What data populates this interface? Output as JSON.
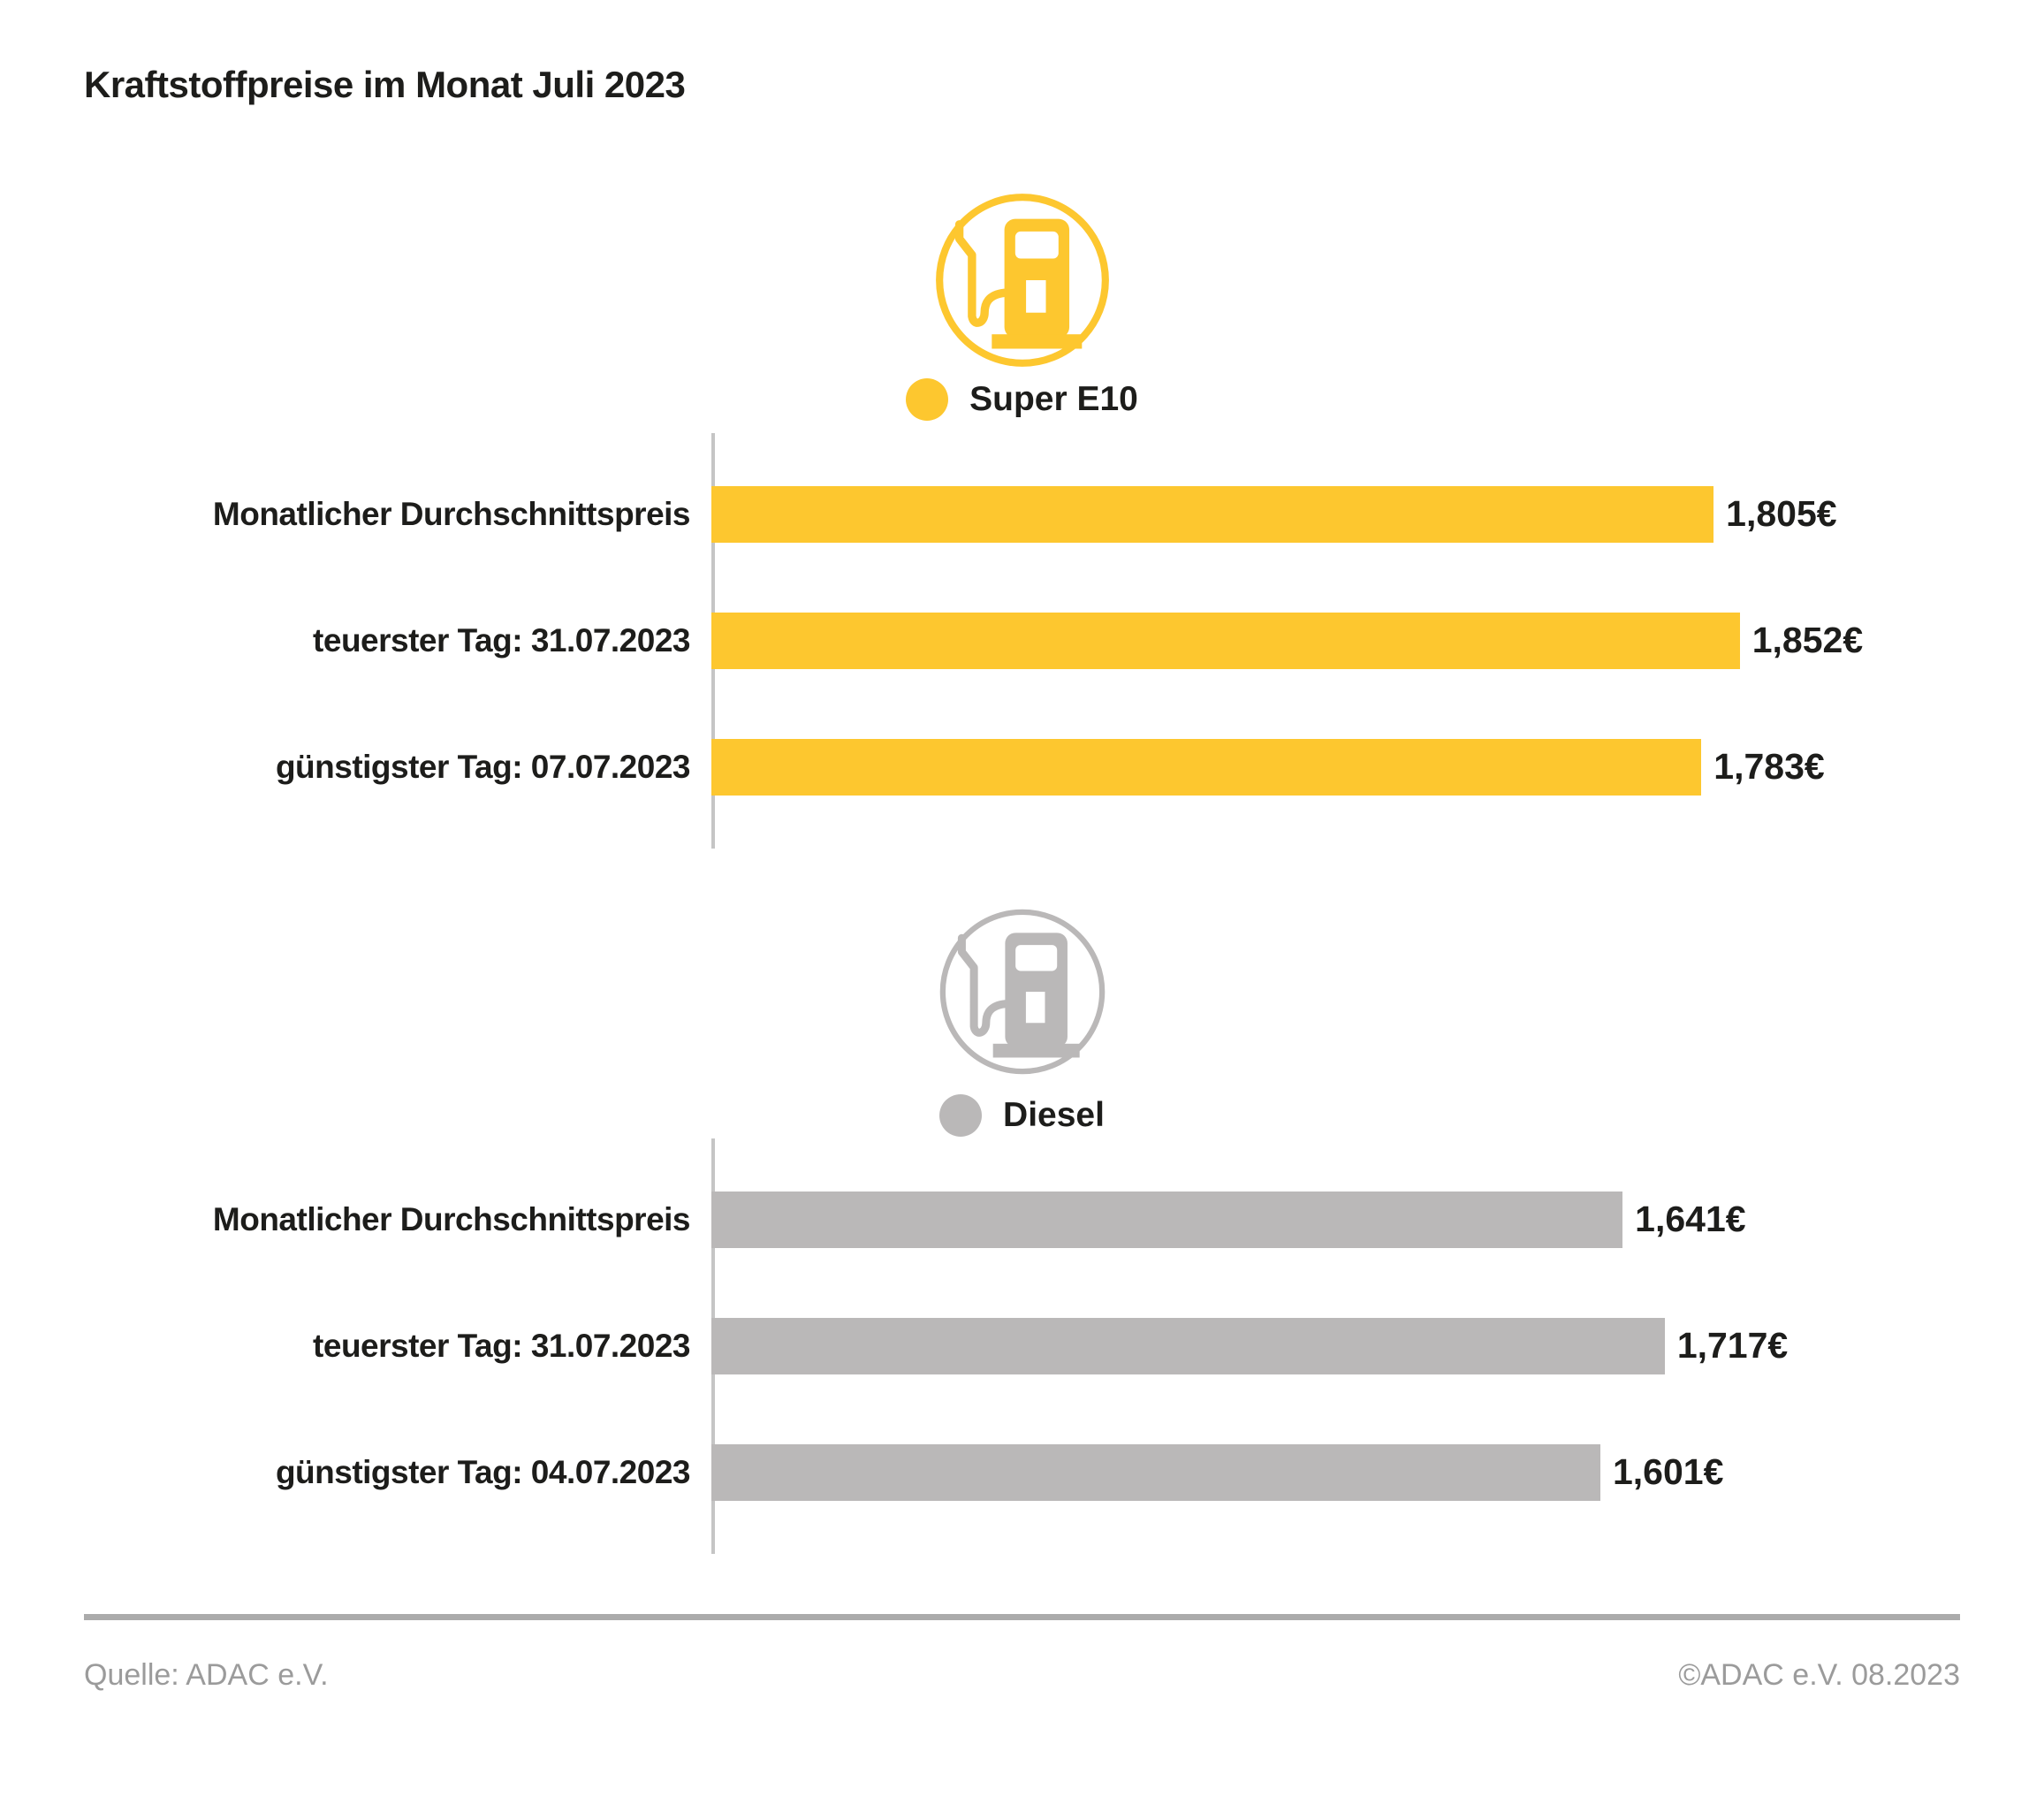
{
  "title": "Kraftstoffpreise im Monat Juli 2023",
  "colors": {
    "super_e10_yellow": "#FDC72F",
    "diesel_gray": "#BAB8B8",
    "axis_gray": "#C5C5C5",
    "divider_gray": "#ABABAB",
    "text_black": "#1D1D1B",
    "footer_gray": "#9B9B9B"
  },
  "chart_data": [
    {
      "type": "bar",
      "orientation": "horizontal",
      "title": "Super E10",
      "icon": "fuel-pump-icon",
      "color": "#FDC72F",
      "categories": [
        "Monatlicher Durchschnittspreis",
        "teuerster Tag: 31.07.2023",
        "günstigster Tag: 07.07.2023"
      ],
      "values": [
        1.805,
        1.852,
        1.783
      ],
      "value_labels": [
        "1,805€",
        "1,852€",
        "1,783€"
      ],
      "xlim": [
        0,
        2.4
      ],
      "grid": false,
      "legend_position": "top-center"
    },
    {
      "type": "bar",
      "orientation": "horizontal",
      "title": "Diesel",
      "icon": "fuel-pump-icon",
      "color": "#BAB8B8",
      "categories": [
        "Monatlicher Durchschnittspreis",
        "teuerster Tag: 31.07.2023",
        "günstigster Tag: 04.07.2023"
      ],
      "values": [
        1.641,
        1.717,
        1.601
      ],
      "value_labels": [
        "1,641€",
        "1,717€",
        "1,601€"
      ],
      "xlim": [
        0,
        2.4
      ],
      "grid": false,
      "legend_position": "top-center"
    }
  ],
  "footer": {
    "source": "Quelle: ADAC e.V.",
    "copyright": "©ADAC e.V. 08.2023"
  }
}
